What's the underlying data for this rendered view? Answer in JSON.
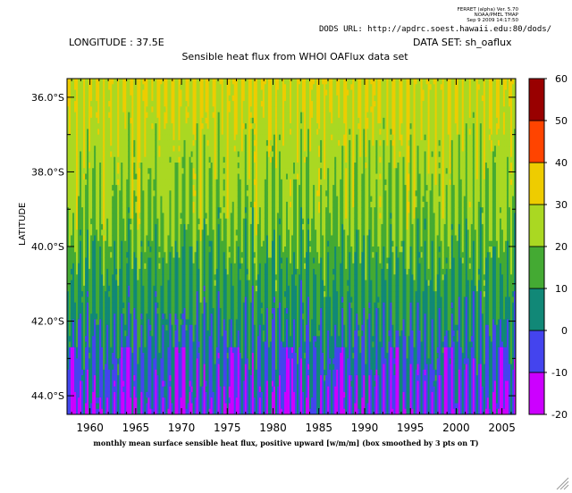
{
  "header": {
    "software": "FERRET (alpha) Ver. 5.70",
    "org": "NOAA/PMEL TMAP",
    "datetime": "Sep  9 2009 14:17:50",
    "dods_url": "DODS URL: http://apdrc.soest.hawaii.edu:80/dods/",
    "longitude": "LONGITUDE : 37.5E",
    "dataset": "DATA SET: sh_oaflux"
  },
  "chart_data": {
    "type": "heatmap",
    "title": "Sensible heat flux from WHOI OAFlux data set",
    "xlabel": "monthly mean surface sensible heat flux, positive upward [w/m/m] (box smoothed by 3 pts on T)",
    "ylabel": "LATITUDE",
    "x_range": [
      1957.5,
      2006.5
    ],
    "y_range": [
      -44.5,
      -35.5
    ],
    "x_ticks": [
      "1960",
      "1965",
      "1970",
      "1975",
      "1980",
      "1985",
      "1990",
      "1995",
      "2000",
      "2005"
    ],
    "y_ticks": [
      "36.0°S",
      "38.0°S",
      "40.0°S",
      "42.0°S",
      "44.0°S"
    ],
    "color_levels": [
      -20,
      -10,
      0,
      10,
      20,
      30,
      40,
      50,
      60
    ],
    "colorbar_labels": [
      "60",
      "50",
      "40",
      "30",
      "20",
      "10",
      "0",
      "-10",
      "-20"
    ],
    "colors": [
      "#cc00ff",
      "#4444ee",
      "#118877",
      "#44aa33",
      "#aad822",
      "#eecc00",
      "#ff4400",
      "#990000"
    ]
  }
}
